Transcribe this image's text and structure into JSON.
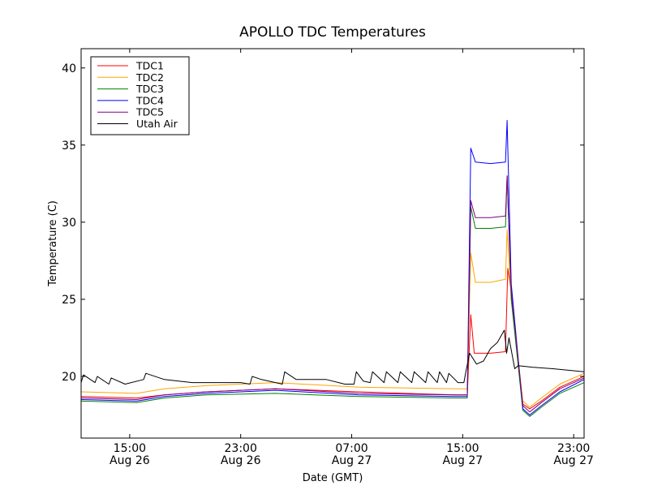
{
  "chart_data": {
    "type": "line",
    "title": "APOLLO TDC Temperatures",
    "xlabel": "Date (GMT)",
    "ylabel": "Temperature (C)",
    "x_range": [
      "2014-08-26 11:30",
      "2014-08-27 23:45"
    ],
    "ylim": [
      16,
      41.25
    ],
    "grid": false,
    "legend_position": "top-left",
    "x_ticks": [
      {
        "x": "2014-08-26 15:00",
        "label_time": "15:00",
        "label_date": "Aug 26"
      },
      {
        "x": "2014-08-26 23:00",
        "label_time": "23:00",
        "label_date": "Aug 26"
      },
      {
        "x": "2014-08-27 07:00",
        "label_time": "07:00",
        "label_date": "Aug 27"
      },
      {
        "x": "2014-08-27 15:00",
        "label_time": "15:00",
        "label_date": "Aug 27"
      },
      {
        "x": "2014-08-27 23:00",
        "label_time": "23:00",
        "label_date": "Aug 27"
      }
    ],
    "y_ticks": [
      {
        "y": 20,
        "label": "20"
      },
      {
        "y": 25,
        "label": "25"
      },
      {
        "y": 30,
        "label": "30"
      },
      {
        "y": 35,
        "label": "35"
      },
      {
        "y": 40,
        "label": "40"
      }
    ],
    "series": [
      {
        "name": "TDC1",
        "color": "#ff0000",
        "points": [
          [
            "2014-08-26 11:30",
            18.7
          ],
          [
            "2014-08-26 15:30",
            18.6
          ],
          [
            "2014-08-26 17:30",
            18.8
          ],
          [
            "2014-08-26 20:30",
            19.0
          ],
          [
            "2014-08-27 01:30",
            19.2
          ],
          [
            "2014-08-27 07:30",
            19.0
          ],
          [
            "2014-08-27 14:30",
            18.8
          ],
          [
            "2014-08-27 15:20",
            18.8
          ],
          [
            "2014-08-27 15:35",
            24.0
          ],
          [
            "2014-08-27 15:50",
            21.5
          ],
          [
            "2014-08-27 17:00",
            21.5
          ],
          [
            "2014-08-27 18:05",
            21.6
          ],
          [
            "2014-08-27 18:15",
            27.0
          ],
          [
            "2014-08-27 18:30",
            25.5
          ],
          [
            "2014-08-27 19:20",
            18.2
          ],
          [
            "2014-08-27 19:50",
            17.9
          ],
          [
            "2014-08-27 20:40",
            18.4
          ],
          [
            "2014-08-27 22:00",
            19.3
          ],
          [
            "2014-08-27 23:45",
            20.0
          ]
        ]
      },
      {
        "name": "TDC2",
        "color": "#ffa500",
        "points": [
          [
            "2014-08-26 11:30",
            19.0
          ],
          [
            "2014-08-26 15:30",
            18.9
          ],
          [
            "2014-08-26 17:30",
            19.2
          ],
          [
            "2014-08-26 20:30",
            19.4
          ],
          [
            "2014-08-27 01:30",
            19.6
          ],
          [
            "2014-08-27 07:30",
            19.3
          ],
          [
            "2014-08-27 14:30",
            19.2
          ],
          [
            "2014-08-27 15:20",
            19.2
          ],
          [
            "2014-08-27 15:35",
            28.0
          ],
          [
            "2014-08-27 15:55",
            26.1
          ],
          [
            "2014-08-27 17:00",
            26.1
          ],
          [
            "2014-08-27 18:05",
            26.3
          ],
          [
            "2014-08-27 18:12",
            29.5
          ],
          [
            "2014-08-27 18:30",
            25.0
          ],
          [
            "2014-08-27 19:20",
            18.4
          ],
          [
            "2014-08-27 19:50",
            18.0
          ],
          [
            "2014-08-27 20:40",
            18.6
          ],
          [
            "2014-08-27 22:00",
            19.5
          ],
          [
            "2014-08-27 23:45",
            20.2
          ]
        ]
      },
      {
        "name": "TDC3",
        "color": "#008000",
        "points": [
          [
            "2014-08-26 11:30",
            18.4
          ],
          [
            "2014-08-26 15:30",
            18.3
          ],
          [
            "2014-08-26 17:30",
            18.6
          ],
          [
            "2014-08-26 20:30",
            18.8
          ],
          [
            "2014-08-27 01:30",
            18.9
          ],
          [
            "2014-08-27 07:30",
            18.7
          ],
          [
            "2014-08-27 14:30",
            18.6
          ],
          [
            "2014-08-27 15:20",
            18.6
          ],
          [
            "2014-08-27 15:35",
            31.0
          ],
          [
            "2014-08-27 15:55",
            29.6
          ],
          [
            "2014-08-27 17:00",
            29.6
          ],
          [
            "2014-08-27 18:05",
            29.7
          ],
          [
            "2014-08-27 18:12",
            33.0
          ],
          [
            "2014-08-27 18:30",
            25.0
          ],
          [
            "2014-08-27 19:20",
            17.8
          ],
          [
            "2014-08-27 19:50",
            17.4
          ],
          [
            "2014-08-27 20:40",
            18.0
          ],
          [
            "2014-08-27 22:00",
            18.9
          ],
          [
            "2014-08-27 23:45",
            19.6
          ]
        ]
      },
      {
        "name": "TDC4",
        "color": "#0000ff",
        "points": [
          [
            "2014-08-26 11:30",
            18.5
          ],
          [
            "2014-08-26 15:30",
            18.4
          ],
          [
            "2014-08-26 17:30",
            18.7
          ],
          [
            "2014-08-26 20:30",
            18.9
          ],
          [
            "2014-08-27 01:30",
            19.1
          ],
          [
            "2014-08-27 07:30",
            18.8
          ],
          [
            "2014-08-27 14:30",
            18.7
          ],
          [
            "2014-08-27 15:20",
            18.7
          ],
          [
            "2014-08-27 15:35",
            34.8
          ],
          [
            "2014-08-27 15:55",
            33.9
          ],
          [
            "2014-08-27 17:00",
            33.8
          ],
          [
            "2014-08-27 18:05",
            33.9
          ],
          [
            "2014-08-27 18:12",
            36.6
          ],
          [
            "2014-08-27 18:30",
            26.0
          ],
          [
            "2014-08-27 19:20",
            17.9
          ],
          [
            "2014-08-27 19:50",
            17.5
          ],
          [
            "2014-08-27 20:40",
            18.1
          ],
          [
            "2014-08-27 22:00",
            19.0
          ],
          [
            "2014-08-27 23:45",
            19.8
          ]
        ]
      },
      {
        "name": "TDC5",
        "color": "#800080",
        "points": [
          [
            "2014-08-26 11:30",
            18.6
          ],
          [
            "2014-08-26 15:30",
            18.5
          ],
          [
            "2014-08-26 17:30",
            18.8
          ],
          [
            "2014-08-26 20:30",
            19.0
          ],
          [
            "2014-08-27 01:30",
            19.2
          ],
          [
            "2014-08-27 07:30",
            18.9
          ],
          [
            "2014-08-27 14:30",
            18.8
          ],
          [
            "2014-08-27 15:20",
            18.8
          ],
          [
            "2014-08-27 15:35",
            31.4
          ],
          [
            "2014-08-27 15:55",
            30.3
          ],
          [
            "2014-08-27 17:00",
            30.3
          ],
          [
            "2014-08-27 18:05",
            30.4
          ],
          [
            "2014-08-27 18:12",
            33.0
          ],
          [
            "2014-08-27 18:30",
            25.5
          ],
          [
            "2014-08-27 19:20",
            18.1
          ],
          [
            "2014-08-27 19:50",
            17.7
          ],
          [
            "2014-08-27 20:40",
            18.3
          ],
          [
            "2014-08-27 22:00",
            19.2
          ],
          [
            "2014-08-27 23:45",
            19.9
          ]
        ]
      },
      {
        "name": "Utah Air",
        "color": "#000000",
        "points": [
          [
            "2014-08-26 11:30",
            19.6
          ],
          [
            "2014-08-26 11:40",
            20.1
          ],
          [
            "2014-08-26 12:30",
            19.6
          ],
          [
            "2014-08-26 12:40",
            20.0
          ],
          [
            "2014-08-26 13:30",
            19.5
          ],
          [
            "2014-08-26 13:40",
            19.9
          ],
          [
            "2014-08-26 14:40",
            19.5
          ],
          [
            "2014-08-26 16:00",
            19.8
          ],
          [
            "2014-08-26 16:10",
            20.2
          ],
          [
            "2014-08-26 17:30",
            19.8
          ],
          [
            "2014-08-26 19:30",
            19.6
          ],
          [
            "2014-08-26 23:00",
            19.6
          ],
          [
            "2014-08-26 23:40",
            19.5
          ],
          [
            "2014-08-26 23:50",
            20.0
          ],
          [
            "2014-08-27 00:30",
            19.8
          ],
          [
            "2014-08-27 02:00",
            19.5
          ],
          [
            "2014-08-27 02:10",
            20.3
          ],
          [
            "2014-08-27 03:00",
            19.8
          ],
          [
            "2014-08-27 05:10",
            19.8
          ],
          [
            "2014-08-27 06:30",
            19.5
          ],
          [
            "2014-08-27 07:10",
            19.5
          ],
          [
            "2014-08-27 07:20",
            20.3
          ],
          [
            "2014-08-27 07:50",
            19.7
          ],
          [
            "2014-08-27 08:20",
            19.6
          ],
          [
            "2014-08-27 08:30",
            20.3
          ],
          [
            "2014-08-27 09:20",
            19.6
          ],
          [
            "2014-08-27 09:30",
            20.3
          ],
          [
            "2014-08-27 10:20",
            19.6
          ],
          [
            "2014-08-27 10:30",
            20.3
          ],
          [
            "2014-08-27 11:20",
            19.6
          ],
          [
            "2014-08-27 11:30",
            20.3
          ],
          [
            "2014-08-27 12:20",
            19.6
          ],
          [
            "2014-08-27 12:30",
            20.3
          ],
          [
            "2014-08-27 13:10",
            19.6
          ],
          [
            "2014-08-27 13:20",
            20.3
          ],
          [
            "2014-08-27 13:50",
            19.6
          ],
          [
            "2014-08-27 14:00",
            20.2
          ],
          [
            "2014-08-27 14:40",
            19.6
          ],
          [
            "2014-08-27 15:05",
            19.6
          ],
          [
            "2014-08-27 15:15",
            20.4
          ],
          [
            "2014-08-27 15:30",
            21.5
          ],
          [
            "2014-08-27 16:00",
            20.8
          ],
          [
            "2014-08-27 16:30",
            21.0
          ],
          [
            "2014-08-27 17:00",
            21.8
          ],
          [
            "2014-08-27 17:30",
            22.2
          ],
          [
            "2014-08-27 18:00",
            23.0
          ],
          [
            "2014-08-27 18:10",
            21.5
          ],
          [
            "2014-08-27 18:20",
            22.5
          ],
          [
            "2014-08-27 18:45",
            20.5
          ],
          [
            "2014-08-27 19:00",
            20.7
          ],
          [
            "2014-08-27 20:00",
            20.6
          ],
          [
            "2014-08-27 21:30",
            20.5
          ],
          [
            "2014-08-27 23:45",
            20.3
          ]
        ]
      }
    ]
  }
}
